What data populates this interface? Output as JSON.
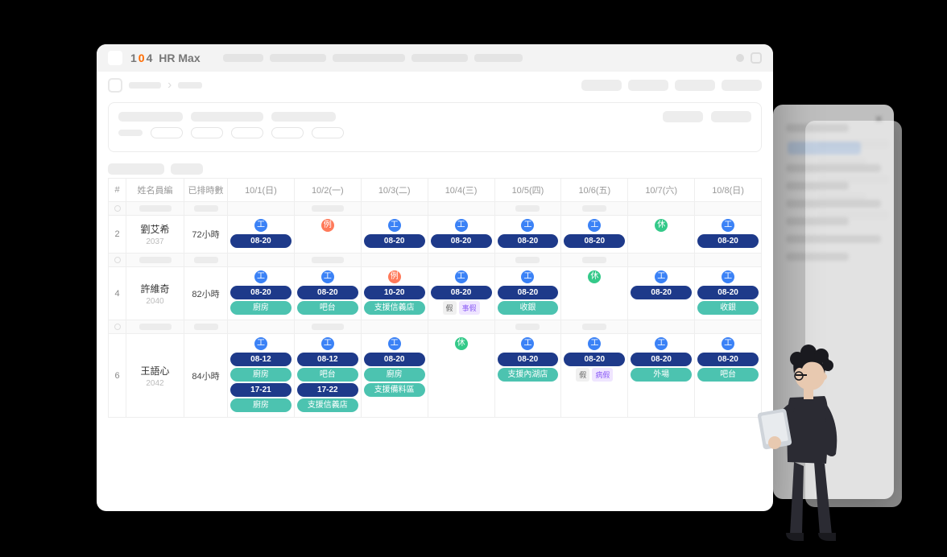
{
  "brand": {
    "prefix": "1",
    "o": "0",
    "suffix": "4",
    "name": "HR Max"
  },
  "table": {
    "headers": {
      "idx": "#",
      "name": "姓名員編",
      "hours": "已排時數",
      "days": [
        "10/1(日)",
        "10/2(一)",
        "10/3(二)",
        "10/4(三)",
        "10/5(四)",
        "10/6(五)",
        "10/7(六)",
        "10/8(日)"
      ]
    },
    "badge_labels": {
      "work": "工",
      "rest": "休",
      "holi": "例",
      "leave_key": "假"
    },
    "colors": {
      "badge_work": "#3b82f6",
      "badge_rest": "#34c989",
      "badge_holi": "#ff7a5a",
      "chip_time": "#1e3a8a",
      "chip_loc": "#4cc3b0",
      "leave_v": "#8b5cf6"
    },
    "rows": [
      {
        "idx": "2",
        "name": "劉艾希",
        "emp_id": "2037",
        "hours": "72小時",
        "days": [
          {
            "badge": "work",
            "chips": [
              {
                "t": "time",
                "v": "08-20"
              }
            ]
          },
          {
            "badge": "holi"
          },
          {
            "badge": "work",
            "chips": [
              {
                "t": "time",
                "v": "08-20"
              }
            ]
          },
          {
            "badge": "work",
            "chips": [
              {
                "t": "time",
                "v": "08-20"
              }
            ]
          },
          {
            "badge": "work",
            "chips": [
              {
                "t": "time",
                "v": "08-20"
              }
            ]
          },
          {
            "badge": "work",
            "chips": [
              {
                "t": "time",
                "v": "08-20"
              }
            ]
          },
          {
            "badge": "rest"
          },
          {
            "badge": "work",
            "chips": [
              {
                "t": "time",
                "v": "08-20"
              }
            ]
          }
        ]
      },
      {
        "idx": "4",
        "name": "許維奇",
        "emp_id": "2040",
        "hours": "82小時",
        "days": [
          {
            "badge": "work",
            "chips": [
              {
                "t": "time",
                "v": "08-20"
              },
              {
                "t": "loc",
                "v": "廚房"
              }
            ]
          },
          {
            "badge": "work",
            "chips": [
              {
                "t": "time",
                "v": "08-20"
              },
              {
                "t": "loc",
                "v": "吧台"
              }
            ]
          },
          {
            "badge": "holi",
            "chips": [
              {
                "t": "time",
                "v": "10-20"
              },
              {
                "t": "support",
                "v": "支援信義店"
              }
            ]
          },
          {
            "badge": "work",
            "chips": [
              {
                "t": "time",
                "v": "08-20"
              }
            ],
            "leave": "事假"
          },
          {
            "badge": "work",
            "chips": [
              {
                "t": "time",
                "v": "08-20"
              },
              {
                "t": "loc",
                "v": "收銀"
              }
            ]
          },
          {
            "badge": "rest"
          },
          {
            "badge": "work",
            "chips": [
              {
                "t": "time",
                "v": "08-20"
              }
            ]
          },
          {
            "badge": "work",
            "chips": [
              {
                "t": "time",
                "v": "08-20"
              },
              {
                "t": "loc",
                "v": "收銀"
              }
            ]
          }
        ]
      },
      {
        "idx": "6",
        "name": "王語心",
        "emp_id": "2042",
        "hours": "84小時",
        "days": [
          {
            "badge": "work",
            "chips": [
              {
                "t": "time",
                "v": "08-12"
              },
              {
                "t": "loc",
                "v": "廚房"
              },
              {
                "t": "time",
                "v": "17-21"
              },
              {
                "t": "loc",
                "v": "廚房"
              }
            ]
          },
          {
            "badge": "work",
            "chips": [
              {
                "t": "time",
                "v": "08-12"
              },
              {
                "t": "loc",
                "v": "吧台"
              },
              {
                "t": "time",
                "v": "17-22"
              },
              {
                "t": "support",
                "v": "支援信義店"
              }
            ]
          },
          {
            "badge": "work",
            "chips": [
              {
                "t": "time",
                "v": "08-20"
              },
              {
                "t": "loc",
                "v": "廚房"
              },
              {
                "t": "support",
                "v": "支援備料區"
              }
            ]
          },
          {
            "badge": "rest"
          },
          {
            "badge": "work",
            "chips": [
              {
                "t": "time",
                "v": "08-20"
              },
              {
                "t": "support",
                "v": "支援內湖店"
              }
            ]
          },
          {
            "badge": "work",
            "chips": [
              {
                "t": "time",
                "v": "08-20"
              }
            ],
            "leave": "病假"
          },
          {
            "badge": "work",
            "chips": [
              {
                "t": "time",
                "v": "08-20"
              },
              {
                "t": "loc",
                "v": "外場"
              }
            ]
          },
          {
            "badge": "work",
            "chips": [
              {
                "t": "time",
                "v": "08-20"
              },
              {
                "t": "loc",
                "v": "吧台"
              }
            ]
          }
        ]
      }
    ]
  }
}
